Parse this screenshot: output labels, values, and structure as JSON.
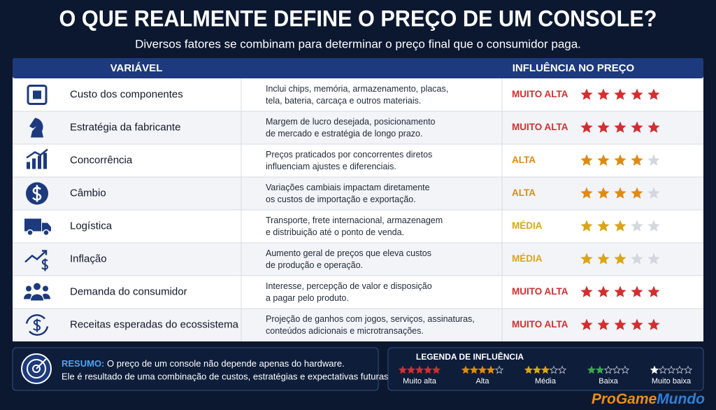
{
  "header": {
    "title": "O QUE REALMENTE DEFINE O PREÇO DE UM CONSOLE?",
    "subtitle": "Diversos fatores se combinam para determinar o preço final que o consumidor paga."
  },
  "table": {
    "columns": [
      "VARIÁVEL",
      "INFLUÊNCIA NO PREÇO"
    ],
    "stars_max": 5,
    "rows": [
      {
        "name": "Custo dos componentes",
        "description": [
          "Inclui chips, memória, armazenamento, placas,",
          "tela, bateria, carcaça e outros materiais."
        ],
        "level": "MUITO ALTA",
        "stars": 5
      },
      {
        "name": "Estratégia da fabricante",
        "description": [
          "Margem de lucro desejada, posicionamento",
          "de mercado e estratégia de longo prazo."
        ],
        "level": "MUITO ALTA",
        "stars": 5
      },
      {
        "name": "Concorrência",
        "description": [
          "Preços praticados por concorrentes diretos",
          "influenciam ajustes e diferenciais."
        ],
        "level": "ALTA",
        "stars": 4
      },
      {
        "name": "Câmbio",
        "description": [
          "Variações cambiais impactam diretamente",
          "os custos de importação e exportação."
        ],
        "level": "ALTA",
        "stars": 4
      },
      {
        "name": "Logística",
        "description": [
          "Transporte, frete internacional, armazenagem",
          "e distribuição até o ponto de venda."
        ],
        "level": "MÉDIA",
        "stars": 3
      },
      {
        "name": "Inflação",
        "description": [
          "Aumento geral de preços que eleva custos",
          "de produção e operação."
        ],
        "level": "MÉDIA",
        "stars": 3
      },
      {
        "name": "Demanda do consumidor",
        "description": [
          "Interesse, percepção de valor e disposição",
          "a pagar pelo produto."
        ],
        "level": "MUITO ALTA",
        "stars": 5
      },
      {
        "name": "Receitas esperadas do ecossistema",
        "description": [
          "Projeção de ganhos com jogos, serviços, assinaturas,",
          "conteúdos adicionais e microtransações."
        ],
        "level": "MUITO ALTA",
        "stars": 5
      }
    ]
  },
  "summary": {
    "label": "RESUMO:",
    "lines": [
      "O preço de um console não depende apenas do hardware.",
      "Ele é resultado de uma combinação de custos, estratégias e expectativas futuras."
    ]
  },
  "legend": {
    "title": "LEGENDA DE INFLUÊNCIA",
    "items": [
      {
        "label": "Muito alta",
        "stars": 5,
        "color": "#d32f2f"
      },
      {
        "label": "Alta",
        "stars": 4,
        "color": "#e08a12"
      },
      {
        "label": "Média",
        "stars": 3,
        "color": "#dba51a"
      },
      {
        "label": "Baixa",
        "stars": 2,
        "color": "#3aa84a"
      },
      {
        "label": "Muito baixa",
        "stars": 1,
        "color": "#ffffff"
      }
    ]
  },
  "logo": {
    "first": "ProGame",
    "second": "Mundo"
  }
}
